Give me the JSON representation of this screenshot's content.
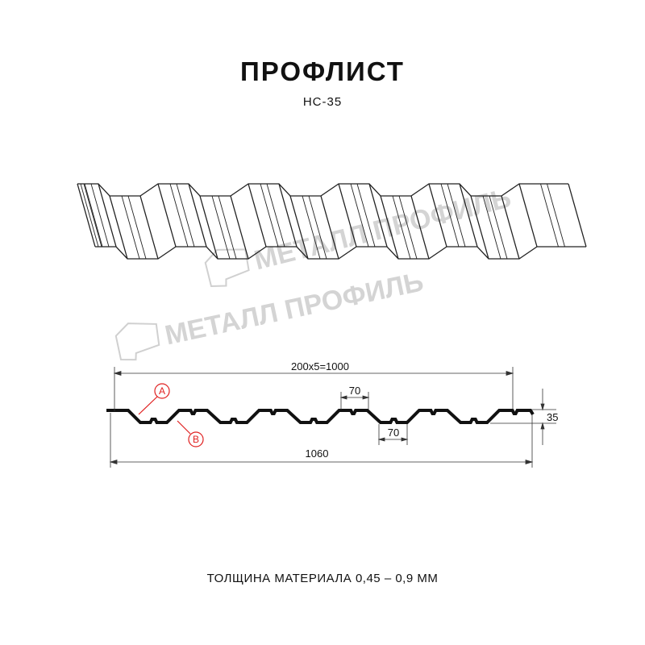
{
  "header": {
    "title": "ПРОФЛИСТ",
    "subtitle": "НС-35"
  },
  "watermark": {
    "text": "МЕТАЛЛ ПРОФИЛЬ",
    "color": "#c8c8c8"
  },
  "dimensions": {
    "pitch": "200x5=1000",
    "total_width": "1060",
    "top_flat": "70",
    "bottom_flat": "70",
    "height": "35"
  },
  "callouts": {
    "a": "A",
    "b": "B",
    "color": "#e02020"
  },
  "footer": {
    "thickness": "ТОЛЩИНА МАТЕРИАЛА 0,45 – 0,9 ММ"
  }
}
